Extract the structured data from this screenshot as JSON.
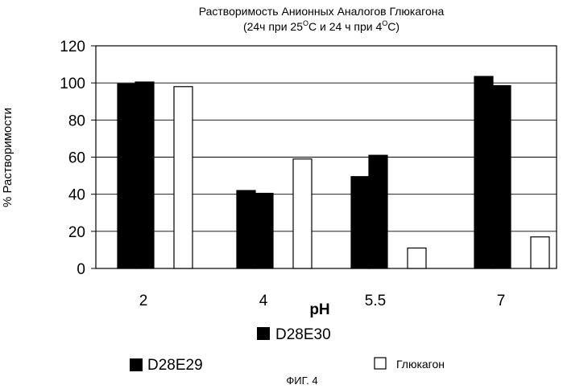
{
  "chart_data": {
    "type": "bar",
    "title_line1": "Растворимость Анионных Аналогов Глюкагона",
    "title_line2_parts": [
      "(24ч при 25",
      "O",
      "C и 24 ч при 4",
      "O",
      "C)"
    ],
    "xlabel": "pH",
    "ylabel": "% Растворимости",
    "categories": [
      "2",
      "4",
      "5.5",
      "7"
    ],
    "ylim": [
      0,
      120
    ],
    "yticks": [
      "0",
      "20",
      "40",
      "60",
      "80",
      "100",
      "120"
    ],
    "grid": true,
    "series": [
      {
        "name": "D28E29",
        "values": [
          99.5,
          42,
          49.5,
          103.5
        ],
        "color": "#000000"
      },
      {
        "name": "D28E30",
        "values": [
          100.5,
          40.5,
          61,
          98.5
        ],
        "color": "#000000"
      },
      {
        "name": "Глюкагон",
        "values": [
          98,
          59,
          11,
          17
        ],
        "color": "#ffffff"
      }
    ],
    "legend_placement": "bottom"
  },
  "figure_caption": "ФИГ. 4"
}
